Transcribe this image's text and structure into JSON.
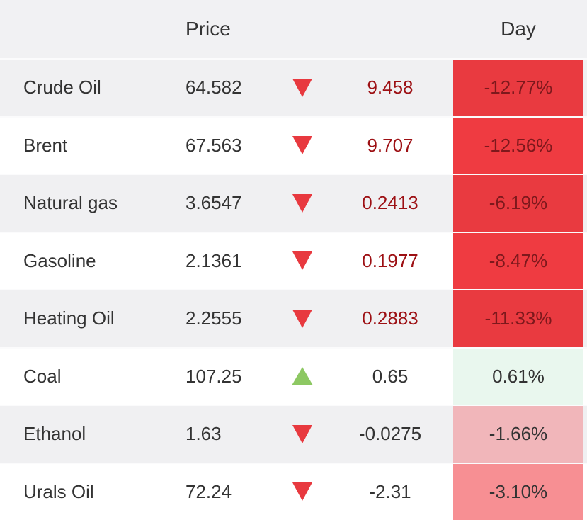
{
  "table": {
    "header": {
      "price_label": "Price",
      "day_label": "Day"
    },
    "rows": [
      {
        "name": "Crude Oil",
        "price": "64.582",
        "direction": "down",
        "change": "9.458",
        "change_color": "#9d1014",
        "day_percent": "-12.77%",
        "day_bg": "#e93a40",
        "day_color": "#7d181c",
        "row_bg": "#f0f0f2"
      },
      {
        "name": "Brent",
        "price": "67.563",
        "direction": "down",
        "change": "9.707",
        "change_color": "#9d1014",
        "day_percent": "-12.56%",
        "day_bg": "#ef3b41",
        "day_color": "#7d181c",
        "row_bg": "#ffffff"
      },
      {
        "name": "Natural gas",
        "price": "3.6547",
        "direction": "down",
        "change": "0.2413",
        "change_color": "#9d1014",
        "day_percent": "-6.19%",
        "day_bg": "#e93a40",
        "day_color": "#7d181c",
        "row_bg": "#f0f0f2"
      },
      {
        "name": "Gasoline",
        "price": "2.1361",
        "direction": "down",
        "change": "0.1977",
        "change_color": "#9d1014",
        "day_percent": "-8.47%",
        "day_bg": "#ef3b41",
        "day_color": "#7d181c",
        "row_bg": "#ffffff"
      },
      {
        "name": "Heating Oil",
        "price": "2.2555",
        "direction": "down",
        "change": "0.2883",
        "change_color": "#9d1014",
        "day_percent": "-11.33%",
        "day_bg": "#e93a40",
        "day_color": "#7d181c",
        "row_bg": "#f0f0f2"
      },
      {
        "name": "Coal",
        "price": "107.25",
        "direction": "up",
        "change": "0.65",
        "change_color": "#333333",
        "day_percent": "0.61%",
        "day_bg": "#e9f7ee",
        "day_color": "#333333",
        "row_bg": "#ffffff"
      },
      {
        "name": "Ethanol",
        "price": "1.63",
        "direction": "down",
        "change": "-0.0275",
        "change_color": "#333333",
        "day_percent": "-1.66%",
        "day_bg": "#f1b6ba",
        "day_color": "#333333",
        "row_bg": "#f0f0f2"
      },
      {
        "name": "Urals Oil",
        "price": "72.24",
        "direction": "down",
        "change": "-2.31",
        "change_color": "#333333",
        "day_percent": "-3.10%",
        "day_bg": "#f78f93",
        "day_color": "#333333",
        "row_bg": "#ffffff"
      }
    ]
  },
  "colors": {
    "down_triangle": "#e8393f",
    "up_triangle": "#8dc863",
    "header_bg": "#f1f1f3",
    "row_divider": "#fbfbfc",
    "text": "#333333"
  }
}
